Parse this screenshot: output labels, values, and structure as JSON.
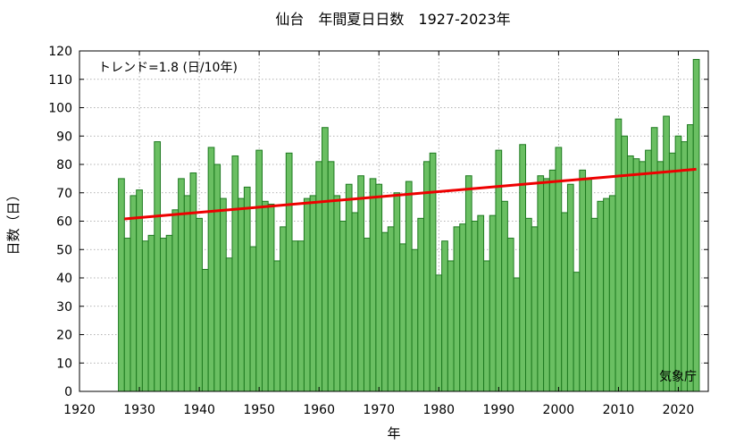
{
  "chart_data": {
    "type": "bar",
    "title": "仙台　年間夏日日数　1927-2023年",
    "xlabel": "年",
    "ylabel": "日数（日）",
    "xlim": [
      1920,
      2025
    ],
    "ylim": [
      0,
      120
    ],
    "xticks": [
      1920,
      1930,
      1940,
      1950,
      1960,
      1970,
      1980,
      1990,
      2000,
      2010,
      2020
    ],
    "yticks": [
      0,
      10,
      20,
      30,
      40,
      50,
      60,
      70,
      80,
      90,
      100,
      110,
      120
    ],
    "grid": true,
    "x": [
      1927,
      1928,
      1929,
      1930,
      1931,
      1932,
      1933,
      1934,
      1935,
      1936,
      1937,
      1938,
      1939,
      1940,
      1941,
      1942,
      1943,
      1944,
      1945,
      1946,
      1947,
      1948,
      1949,
      1950,
      1951,
      1952,
      1953,
      1954,
      1955,
      1956,
      1957,
      1958,
      1959,
      1960,
      1961,
      1962,
      1963,
      1964,
      1965,
      1966,
      1967,
      1968,
      1969,
      1970,
      1971,
      1972,
      1973,
      1974,
      1975,
      1976,
      1977,
      1978,
      1979,
      1980,
      1981,
      1982,
      1983,
      1984,
      1985,
      1986,
      1987,
      1988,
      1989,
      1990,
      1991,
      1992,
      1993,
      1994,
      1995,
      1996,
      1997,
      1998,
      1999,
      2000,
      2001,
      2002,
      2003,
      2004,
      2005,
      2006,
      2007,
      2008,
      2009,
      2010,
      2011,
      2012,
      2013,
      2014,
      2015,
      2016,
      2017,
      2018,
      2019,
      2020,
      2021,
      2022,
      2023
    ],
    "values": [
      75,
      54,
      69,
      71,
      53,
      55,
      88,
      54,
      55,
      64,
      75,
      69,
      77,
      61,
      43,
      86,
      80,
      68,
      47,
      83,
      68,
      72,
      51,
      85,
      67,
      66,
      46,
      58,
      84,
      53,
      53,
      68,
      69,
      81,
      93,
      81,
      69,
      60,
      73,
      63,
      76,
      54,
      75,
      73,
      56,
      58,
      70,
      52,
      74,
      50,
      61,
      81,
      84,
      41,
      53,
      46,
      58,
      59,
      76,
      60,
      62,
      46,
      62,
      85,
      67,
      54,
      40,
      87,
      61,
      58,
      76,
      75,
      78,
      86,
      63,
      73,
      42,
      78,
      75,
      61,
      67,
      68,
      69,
      96,
      90,
      83,
      82,
      81,
      85,
      93,
      81,
      97,
      84,
      90,
      88,
      94,
      117
    ],
    "trend": {
      "label": "トレンド=1.8 (日/10年)",
      "start": [
        1927.5,
        60.8
      ],
      "end": [
        2023,
        78.3
      ]
    },
    "annotations": {
      "source": "気象庁"
    }
  },
  "colors": {
    "bar_fill": "#6abf62",
    "bar_edge": "#1e7a20",
    "trend_line": "#ee0000"
  }
}
